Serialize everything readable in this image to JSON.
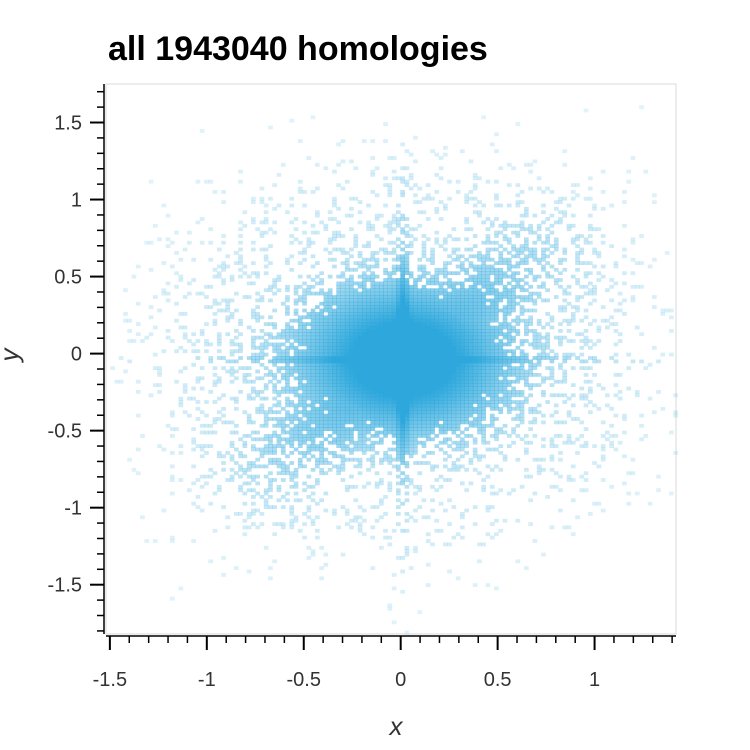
{
  "chart_data": {
    "type": "heatmap",
    "title": "all 1943040 homologies",
    "xlabel": "x",
    "ylabel": "y",
    "xlim": [
      -1.52,
      1.42
    ],
    "ylim": [
      -1.82,
      1.75
    ],
    "x_ticks": [
      {
        "value": -1.5,
        "label": "-1.5"
      },
      {
        "value": -1,
        "label": "-1"
      },
      {
        "value": -0.5,
        "label": "-0.5"
      },
      {
        "value": 0,
        "label": "0"
      },
      {
        "value": 0.5,
        "label": "0.5"
      },
      {
        "value": 1,
        "label": "1"
      }
    ],
    "y_ticks": [
      {
        "value": 1.5,
        "label": "1.5"
      },
      {
        "value": 1,
        "label": "1"
      },
      {
        "value": 0.5,
        "label": "0.5"
      },
      {
        "value": 0,
        "label": "0"
      },
      {
        "value": -0.5,
        "label": "-0.5"
      },
      {
        "value": -1,
        "label": "-1"
      },
      {
        "value": -1.5,
        "label": "-1.5"
      }
    ],
    "color": "#2ea8dc",
    "density": {
      "center": [
        0.0,
        -0.05
      ],
      "main_spread_x": 0.38,
      "main_spread_y": 0.34,
      "diagonal_spread": 0.38
    },
    "grid": false,
    "legend": "none"
  }
}
